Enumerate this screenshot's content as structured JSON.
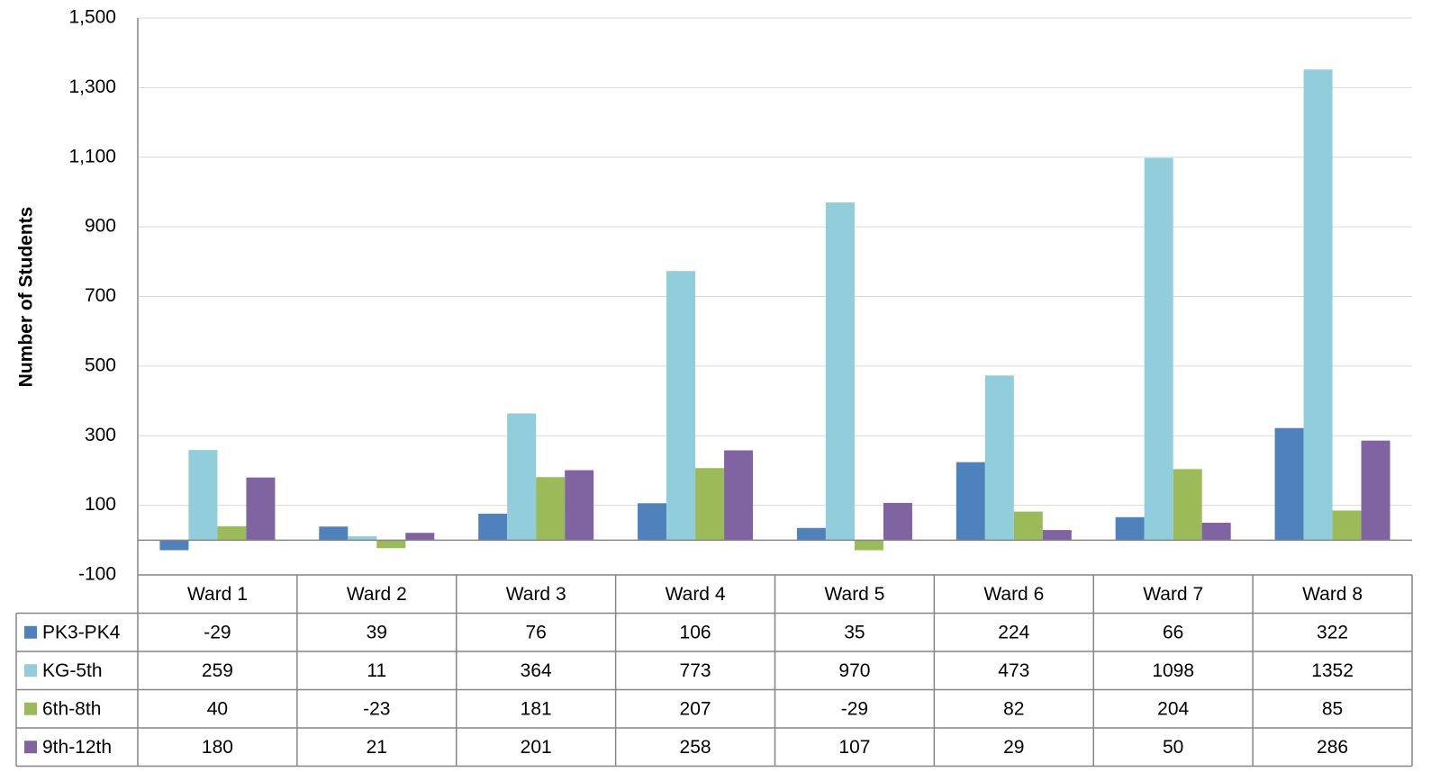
{
  "chart_data": {
    "type": "bar",
    "y_label": "Number of Students",
    "categories": [
      "Ward 1",
      "Ward 2",
      "Ward 3",
      "Ward 4",
      "Ward 5",
      "Ward 6",
      "Ward 7",
      "Ward 8"
    ],
    "series": [
      {
        "name": "PK3-PK4",
        "color": "#4f81bd",
        "values": [
          -29,
          39,
          76,
          106,
          35,
          224,
          66,
          322
        ]
      },
      {
        "name": "KG-5th",
        "color": "#92cddc",
        "values": [
          259,
          11,
          364,
          773,
          970,
          473,
          1098,
          1352
        ]
      },
      {
        "name": "6th-8th",
        "color": "#9bbb59",
        "values": [
          40,
          -23,
          181,
          207,
          -29,
          82,
          204,
          85
        ]
      },
      {
        "name": "9th-12th",
        "color": "#8064a2",
        "values": [
          180,
          21,
          201,
          258,
          107,
          29,
          50,
          286
        ]
      }
    ],
    "ylim": [
      -100,
      1500
    ],
    "yticks": [
      -100,
      100,
      300,
      500,
      700,
      900,
      {
        "value": 1100,
        "label": "1,100"
      },
      {
        "value": 1300,
        "label": "1,300"
      },
      {
        "value": 1500,
        "label": "1,500"
      }
    ],
    "grid": true,
    "legend": "table"
  }
}
